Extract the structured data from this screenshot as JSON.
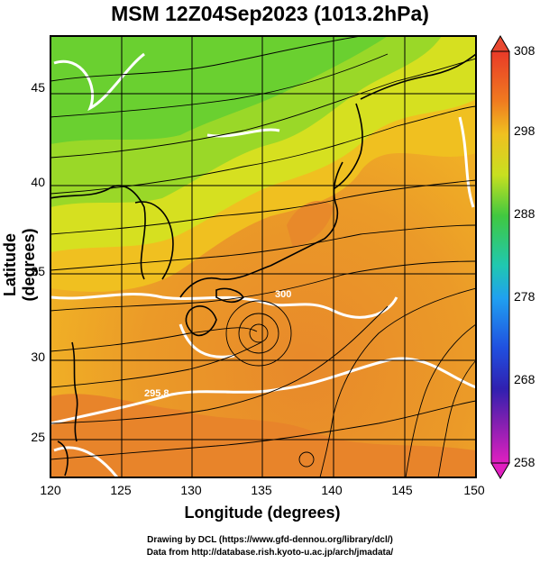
{
  "title": "MSM 12Z04Sep2023 (1013.2hPa)",
  "axes": {
    "xlabel": "Longitude (degrees)",
    "ylabel": "Latitude  (degrees)",
    "xticks": [
      "120",
      "125",
      "130",
      "135",
      "140",
      "145",
      "150"
    ],
    "yticks": [
      "45",
      "40",
      "35",
      "30",
      "25"
    ],
    "xlim": [
      120,
      150
    ],
    "ylim": [
      22.7,
      48
    ]
  },
  "colorbar": {
    "ticks": [
      "308",
      "298",
      "288",
      "278",
      "268",
      "258"
    ],
    "min": 258,
    "max": 308
  },
  "credits": {
    "line1": "Drawing by DCL (https://www.gfd-dennou.org/library/dcl/)",
    "line2": "Data from http://database.rish.kyoto-u.ac.jp/arch/jmadata/"
  },
  "contour_labels": [
    "295.8",
    "300"
  ],
  "colors": {
    "warm": "#e8892a",
    "mid": "#f0c020",
    "cool": "#6ad030",
    "contour": "#ffffff",
    "stream": "#000000"
  }
}
